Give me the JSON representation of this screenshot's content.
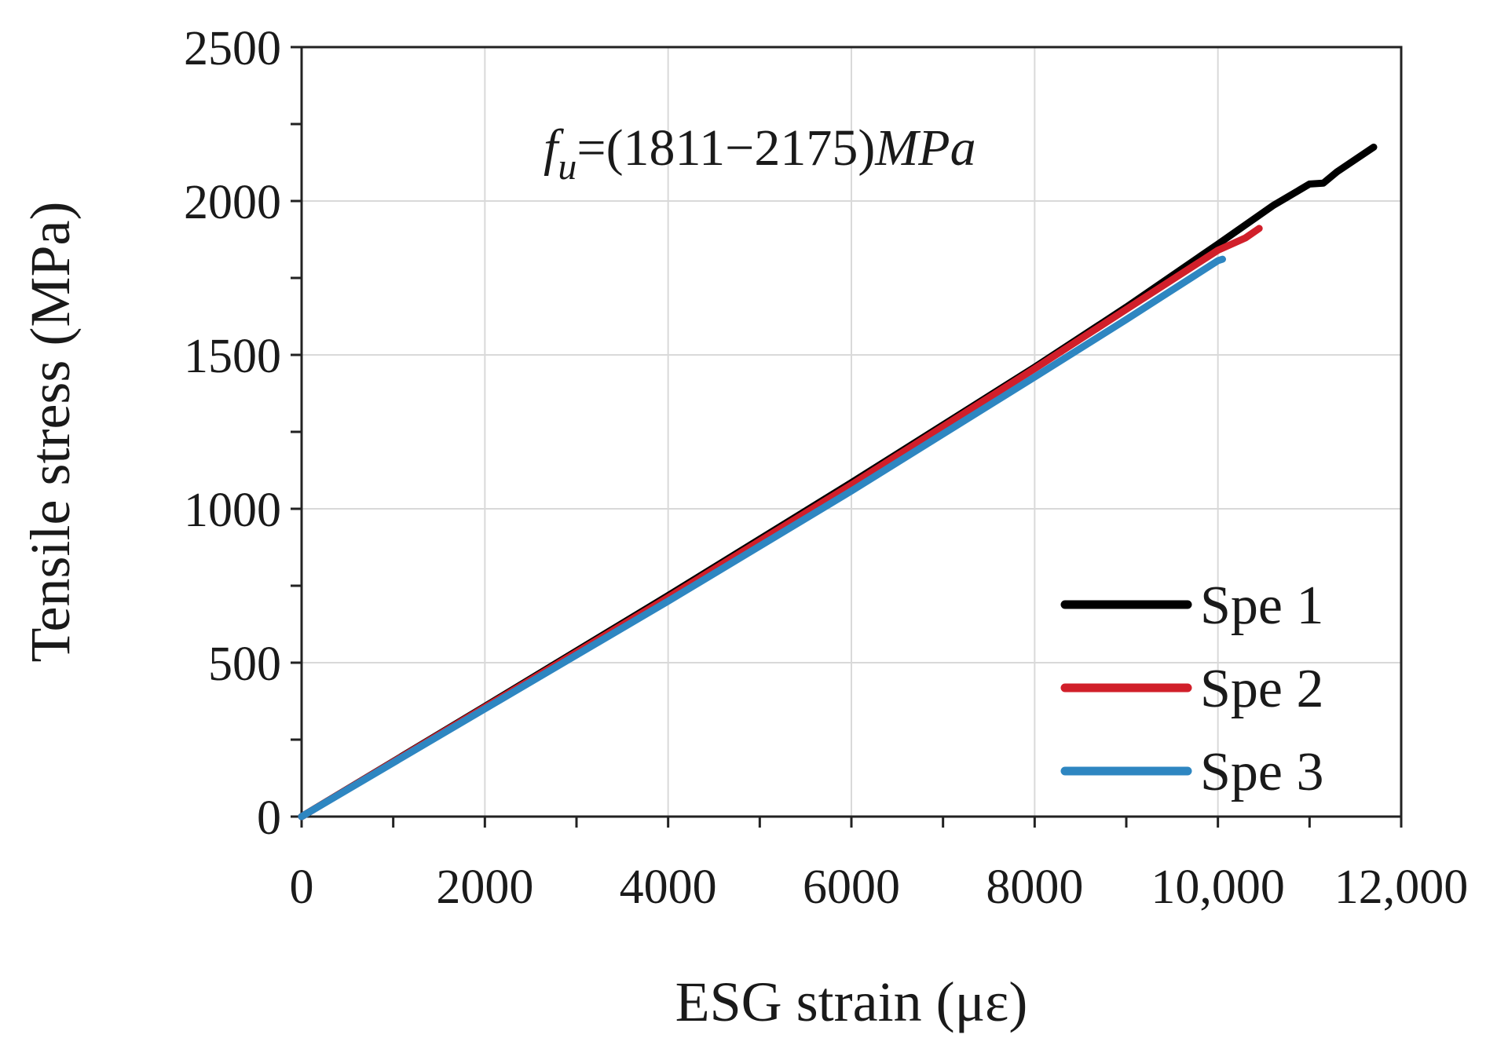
{
  "chart_data": {
    "type": "line",
    "title": "",
    "xlabel": "ESG strain (με)",
    "ylabel": "Tensile stress (MPa)",
    "xlim": [
      0,
      12000
    ],
    "ylim": [
      0,
      2500
    ],
    "x_ticks": [
      0,
      2000,
      4000,
      6000,
      8000,
      10000,
      12000
    ],
    "x_tick_labels": [
      "0",
      "2000",
      "4000",
      "6000",
      "8000",
      "10,000",
      "12,000"
    ],
    "y_ticks": [
      0,
      500,
      1000,
      1500,
      2000,
      2500
    ],
    "y_tick_labels": [
      "0",
      "500",
      "1000",
      "1500",
      "2000",
      "2500"
    ],
    "grid": true,
    "legend_position": "bottom-right",
    "annotation": {
      "symbol": "f",
      "subscript": "u",
      "range": "=(1811−2175)",
      "unit": "MPa"
    },
    "series": [
      {
        "name": "Spe 1",
        "color": "#000000",
        "x": [
          0,
          2000,
          4000,
          6000,
          8000,
          9000,
          10000,
          10600,
          11000,
          11150,
          11300,
          11700
        ],
        "y": [
          0,
          358,
          718,
          1085,
          1460,
          1655,
          1860,
          1985,
          2055,
          2058,
          2095,
          2175
        ]
      },
      {
        "name": "Spe 2",
        "color": "#d11f2a",
        "x": [
          0,
          2000,
          4000,
          6000,
          8000,
          9000,
          10000,
          10300,
          10450
        ],
        "y": [
          0,
          355,
          712,
          1078,
          1455,
          1648,
          1840,
          1880,
          1911
        ]
      },
      {
        "name": "Spe 3",
        "color": "#2e86c1",
        "x": [
          0,
          2000,
          4000,
          6000,
          8000,
          9000,
          10000,
          10050
        ],
        "y": [
          0,
          350,
          700,
          1058,
          1428,
          1615,
          1806,
          1811
        ]
      }
    ]
  }
}
